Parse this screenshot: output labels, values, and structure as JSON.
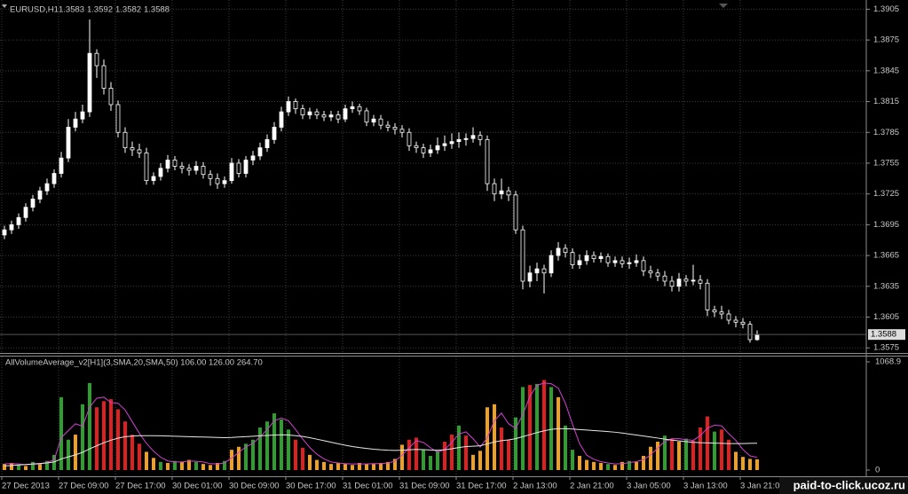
{
  "chart_data": [
    {
      "type": "candlestick",
      "title": "EURUSD,H1",
      "color": "#ffffff",
      "grid": true,
      "categories": [
        "27 Dec 2013",
        null,
        null,
        null,
        null,
        null,
        null,
        null,
        "27 Dec 09:00",
        null,
        null,
        null,
        null,
        null,
        null,
        null,
        "27 Dec 17:00",
        null,
        null,
        null,
        null,
        null,
        null,
        null,
        "30 Dec 01:00",
        null,
        null,
        null,
        null,
        null,
        null,
        null,
        "30 Dec 09:00",
        null,
        null,
        null,
        null,
        null,
        null,
        null,
        "30 Dec 17:00",
        null,
        null,
        null,
        null,
        null,
        null,
        null,
        "31 Dec 01:00",
        null,
        null,
        null,
        null,
        null,
        null,
        null,
        "31 Dec 09:00",
        null,
        null,
        null,
        null,
        null,
        null,
        null,
        "31 Dec 17:00",
        null,
        null,
        null,
        null,
        null,
        null,
        null,
        "2 Jan 13:00",
        null,
        null,
        null,
        null,
        null,
        null,
        null,
        "2 Jan 21:00",
        null,
        null,
        null,
        null,
        null,
        null,
        null,
        "3 Jan 05:00",
        null,
        null,
        null,
        null,
        null,
        null,
        null,
        "3 Jan 13:00",
        null,
        null,
        null,
        null,
        null,
        null,
        null,
        "3 Jan 21:00",
        null,
        null
      ],
      "open": [
        1.3685,
        1.369,
        1.3695,
        1.3702,
        1.3712,
        1.372,
        1.3728,
        1.3735,
        1.3745,
        1.376,
        1.379,
        1.3798,
        1.3805,
        1.3862,
        1.385,
        1.3828,
        1.3812,
        1.3785,
        1.377,
        1.3768,
        1.3765,
        1.3738,
        1.3742,
        1.375,
        1.3758,
        1.3752,
        1.375,
        1.3748,
        1.3752,
        1.3744,
        1.374,
        1.3735,
        1.3738,
        1.3755,
        1.3745,
        1.3758,
        1.3762,
        1.377,
        1.3778,
        1.379,
        1.3805,
        1.3815,
        1.3808,
        1.3802,
        1.3805,
        1.3802,
        1.38,
        1.3802,
        1.3798,
        1.3808,
        1.381,
        1.3806,
        1.3795,
        1.3798,
        1.3792,
        1.379,
        1.3788,
        1.3785,
        1.3772,
        1.377,
        1.3765,
        1.3768,
        1.3772,
        1.3774,
        1.3776,
        1.3778,
        1.3779,
        1.3782,
        1.3778,
        1.3735,
        1.3725,
        1.3728,
        1.3724,
        1.369,
        1.364,
        1.3648,
        1.3652,
        1.3648,
        1.3665,
        1.3672,
        1.3668,
        1.3656,
        1.366,
        1.3665,
        1.3662,
        1.3664,
        1.3658,
        1.366,
        1.3657,
        1.3658,
        1.366,
        1.365,
        1.3648,
        1.3645,
        1.364,
        1.3635,
        1.3642,
        1.364,
        1.3641,
        1.3638,
        1.3612,
        1.361,
        1.3608,
        1.3602,
        1.36,
        1.3598,
        1.3583
      ],
      "high": [
        1.3694,
        1.3699,
        1.3706,
        1.3716,
        1.3724,
        1.3732,
        1.374,
        1.3749,
        1.3766,
        1.3798,
        1.3805,
        1.3812,
        1.3895,
        1.3866,
        1.3856,
        1.3834,
        1.3816,
        1.379,
        1.3776,
        1.3774,
        1.377,
        1.3746,
        1.3755,
        1.3763,
        1.3762,
        1.3756,
        1.3754,
        1.3757,
        1.3756,
        1.3748,
        1.3745,
        1.3742,
        1.376,
        1.3759,
        1.3762,
        1.3767,
        1.3775,
        1.3783,
        1.3795,
        1.381,
        1.382,
        1.3818,
        1.3812,
        1.3809,
        1.3808,
        1.3806,
        1.3806,
        1.3806,
        1.3812,
        1.3815,
        1.3813,
        1.3809,
        1.3802,
        1.3802,
        1.3796,
        1.3794,
        1.3792,
        1.3789,
        1.3776,
        1.3774,
        1.3773,
        1.378,
        1.3782,
        1.3784,
        1.3785,
        1.3784,
        1.379,
        1.3786,
        1.3782,
        1.374,
        1.374,
        1.3732,
        1.3728,
        1.3694,
        1.3655,
        1.3658,
        1.3656,
        1.367,
        1.3678,
        1.3676,
        1.3672,
        1.3666,
        1.367,
        1.3669,
        1.3668,
        1.3667,
        1.3664,
        1.3664,
        1.3663,
        1.3666,
        1.3664,
        1.3655,
        1.3652,
        1.365,
        1.3645,
        1.3648,
        1.3646,
        1.3656,
        1.3646,
        1.3642,
        1.3616,
        1.3616,
        1.3612,
        1.3606,
        1.3604,
        1.3601,
        1.3592
      ],
      "low": [
        1.3681,
        1.3686,
        1.3691,
        1.3698,
        1.3708,
        1.3716,
        1.3724,
        1.3731,
        1.3741,
        1.3756,
        1.3786,
        1.3794,
        1.38,
        1.3838,
        1.3822,
        1.3806,
        1.378,
        1.3765,
        1.3762,
        1.376,
        1.3734,
        1.3734,
        1.3738,
        1.3746,
        1.3748,
        1.3745,
        1.3743,
        1.3744,
        1.374,
        1.3733,
        1.373,
        1.3731,
        1.3735,
        1.3741,
        1.3741,
        1.3753,
        1.3758,
        1.3766,
        1.3774,
        1.3786,
        1.3801,
        1.3803,
        1.3798,
        1.3798,
        1.3798,
        1.3796,
        1.3796,
        1.3794,
        1.3795,
        1.3804,
        1.3802,
        1.3791,
        1.3791,
        1.3788,
        1.3786,
        1.3783,
        1.378,
        1.3767,
        1.3765,
        1.376,
        1.3761,
        1.3764,
        1.3767,
        1.3769,
        1.377,
        1.3772,
        1.3775,
        1.3772,
        1.3728,
        1.3718,
        1.372,
        1.3718,
        1.3686,
        1.3632,
        1.3634,
        1.364,
        1.3628,
        1.3644,
        1.366,
        1.3663,
        1.3652,
        1.3652,
        1.3656,
        1.3658,
        1.3658,
        1.3654,
        1.3654,
        1.3653,
        1.3652,
        1.3654,
        1.3645,
        1.3643,
        1.364,
        1.3635,
        1.363,
        1.363,
        1.3635,
        1.3636,
        1.3632,
        1.3606,
        1.3605,
        1.3603,
        1.3598,
        1.3595,
        1.3594,
        1.358,
        1.3582
      ],
      "close": [
        1.369,
        1.3695,
        1.3702,
        1.3712,
        1.372,
        1.3728,
        1.3735,
        1.3745,
        1.376,
        1.379,
        1.3798,
        1.3805,
        1.3862,
        1.385,
        1.3828,
        1.3812,
        1.3785,
        1.377,
        1.3768,
        1.3765,
        1.3738,
        1.3742,
        1.375,
        1.3758,
        1.3752,
        1.375,
        1.3748,
        1.3752,
        1.3744,
        1.374,
        1.3735,
        1.3738,
        1.3755,
        1.3745,
        1.3758,
        1.3762,
        1.377,
        1.3778,
        1.379,
        1.3805,
        1.3815,
        1.3808,
        1.3802,
        1.3805,
        1.3802,
        1.38,
        1.3802,
        1.3798,
        1.3808,
        1.381,
        1.3806,
        1.3795,
        1.3798,
        1.3792,
        1.379,
        1.3788,
        1.3785,
        1.3772,
        1.377,
        1.3765,
        1.3768,
        1.3772,
        1.3774,
        1.3776,
        1.3778,
        1.3779,
        1.3782,
        1.3778,
        1.3735,
        1.3725,
        1.3728,
        1.3724,
        1.369,
        1.364,
        1.3648,
        1.3652,
        1.3648,
        1.3665,
        1.3672,
        1.3668,
        1.3656,
        1.366,
        1.3665,
        1.3662,
        1.3664,
        1.3658,
        1.366,
        1.3657,
        1.3658,
        1.366,
        1.365,
        1.3648,
        1.3645,
        1.364,
        1.3635,
        1.3642,
        1.364,
        1.3641,
        1.3638,
        1.3612,
        1.361,
        1.3608,
        1.3602,
        1.36,
        1.3598,
        1.3583,
        1.3588
      ],
      "ylim": [
        1.357,
        1.3914
      ],
      "yticks": [
        1.3905,
        1.3875,
        1.3845,
        1.3815,
        1.3785,
        1.3755,
        1.3725,
        1.3695,
        1.3665,
        1.3635,
        1.3605,
        1.3575
      ]
    },
    {
      "type": "bar",
      "title": "AllVolumeAverage_v2[H1](3,SMA,20,SMA,50) 106.00 126.00 264.70",
      "values": [
        60,
        70,
        50,
        40,
        80,
        60,
        90,
        150,
        720,
        300,
        350,
        650,
        860,
        620,
        680,
        700,
        600,
        480,
        350,
        260,
        180,
        120,
        80,
        70,
        90,
        80,
        100,
        80,
        60,
        50,
        70,
        90,
        200,
        230,
        260,
        300,
        420,
        480,
        560,
        500,
        400,
        300,
        220,
        150,
        100,
        80,
        60,
        70,
        60,
        50,
        70,
        60,
        60,
        70,
        80,
        110,
        250,
        300,
        320,
        200,
        140,
        190,
        280,
        350,
        440,
        340,
        150,
        190,
        620,
        650,
        420,
        300,
        520,
        820,
        840,
        850,
        890,
        820,
        720,
        440,
        200,
        140,
        100,
        80,
        70,
        60,
        50,
        80,
        90,
        80,
        140,
        230,
        280,
        340,
        310,
        280,
        310,
        290,
        420,
        530,
        380,
        400,
        300,
        180,
        130,
        110,
        106
      ],
      "colors": [
        "#f0a020",
        "#f0a020",
        "#2e9e2e",
        "#f0a020",
        "#2e9e2e",
        "#f0a020",
        "#2e9e2e",
        "#2e9e2e",
        "#2e9e2e",
        "#2e9e2e",
        "#f0a020",
        "#2e9e2e",
        "#2e9e2e",
        "#e02020",
        "#e02020",
        "#e02020",
        "#e02020",
        "#e02020",
        "#e02020",
        "#e02020",
        "#f0a020",
        "#f0a020",
        "#2e9e2e",
        "#f0a020",
        "#2e9e2e",
        "#f0a020",
        "#f0a020",
        "#2e9e2e",
        "#f0a020",
        "#f0a020",
        "#f0a020",
        "#2e9e2e",
        "#f0a020",
        "#f0a020",
        "#2e9e2e",
        "#2e9e2e",
        "#2e9e2e",
        "#2e9e2e",
        "#2e9e2e",
        "#2e9e2e",
        "#2e9e2e",
        "#e02020",
        "#e02020",
        "#f0a020",
        "#f0a020",
        "#f0a020",
        "#f0a020",
        "#f0a020",
        "#f0a020",
        "#f0a020",
        "#f0a020",
        "#f0a020",
        "#f0a020",
        "#f0a020",
        "#f0a020",
        "#f0a020",
        "#f0a020",
        "#e02020",
        "#e02020",
        "#2e9e2e",
        "#2e9e2e",
        "#2e9e2e",
        "#e02020",
        "#e02020",
        "#2e9e2e",
        "#e02020",
        "#f0a020",
        "#f0a020",
        "#f0a020",
        "#f0a020",
        "#e02020",
        "#e02020",
        "#2e9e2e",
        "#2e9e2e",
        "#e02020",
        "#2e9e2e",
        "#e02020",
        "#2e9e2e",
        "#f0a020",
        "#2e9e2e",
        "#2e9e2e",
        "#f0a020",
        "#f0a020",
        "#f0a020",
        "#f0a020",
        "#2e9e2e",
        "#f0a020",
        "#f0a020",
        "#2e9e2e",
        "#f0a020",
        "#f0a020",
        "#f0a020",
        "#f0a020",
        "#2e9e2e",
        "#e02020",
        "#f0a020",
        "#2e9e2e",
        "#e02020",
        "#e02020",
        "#e02020",
        "#2e9e2e",
        "#e02020",
        "#e02020",
        "#f0a020",
        "#f0a020",
        "#f0a020",
        "#f0a020"
      ],
      "lines": [
        {
          "color": "#d040d0",
          "values": [
            60,
            65,
            60,
            53,
            57,
            60,
            77,
            100,
            320,
            390,
            457,
            433,
            620,
            710,
            720,
            667,
            660,
            593,
            477,
            363,
            263,
            187,
            127,
            90,
            80,
            80,
            90,
            87,
            80,
            63,
            60,
            70,
            120,
            173,
            230,
            263,
            327,
            400,
            487,
            513,
            487,
            400,
            307,
            223,
            157,
            110,
            80,
            70,
            63,
            60,
            60,
            60,
            63,
            63,
            70,
            87,
            147,
            220,
            290,
            273,
            220,
            177,
            203,
            273,
            357,
            377,
            310,
            227,
            320,
            487,
            563,
            457,
            413,
            547,
            727,
            837,
            860,
            853,
            810,
            660,
            453,
            260,
            147,
            107,
            83,
            70,
            60,
            63,
            73,
            83,
            103,
            150,
            217,
            283,
            310,
            310,
            300,
            293,
            340,
            413,
            443,
            437,
            360,
            293,
            203,
            140,
            126
          ]
        },
        {
          "color": "#e8e8e8",
          "values": [
            40,
            45,
            50,
            55,
            60,
            65,
            70,
            80,
            110,
            130,
            150,
            175,
            210,
            240,
            270,
            295,
            315,
            330,
            335,
            340,
            340,
            340,
            338,
            336,
            334,
            332,
            330,
            328,
            326,
            324,
            322,
            320,
            322,
            326,
            330,
            334,
            338,
            342,
            346,
            348,
            346,
            340,
            332,
            320,
            305,
            290,
            275,
            260,
            245,
            232,
            222,
            214,
            206,
            200,
            196,
            194,
            196,
            200,
            204,
            202,
            198,
            196,
            200,
            210,
            222,
            232,
            236,
            240,
            258,
            278,
            290,
            298,
            310,
            330,
            350,
            370,
            388,
            402,
            408,
            408,
            405,
            400,
            395,
            390,
            385,
            380,
            374,
            366,
            356,
            346,
            336,
            326,
            316,
            306,
            296,
            288,
            280,
            274,
            270,
            268,
            266,
            264,
            262,
            262,
            262,
            264,
            264.7
          ]
        }
      ],
      "ylim": [
        0,
        1068.9
      ],
      "yticks": [
        0,
        1068.9
      ]
    }
  ],
  "watermark": "paid-to-click.ucoz.ru"
}
